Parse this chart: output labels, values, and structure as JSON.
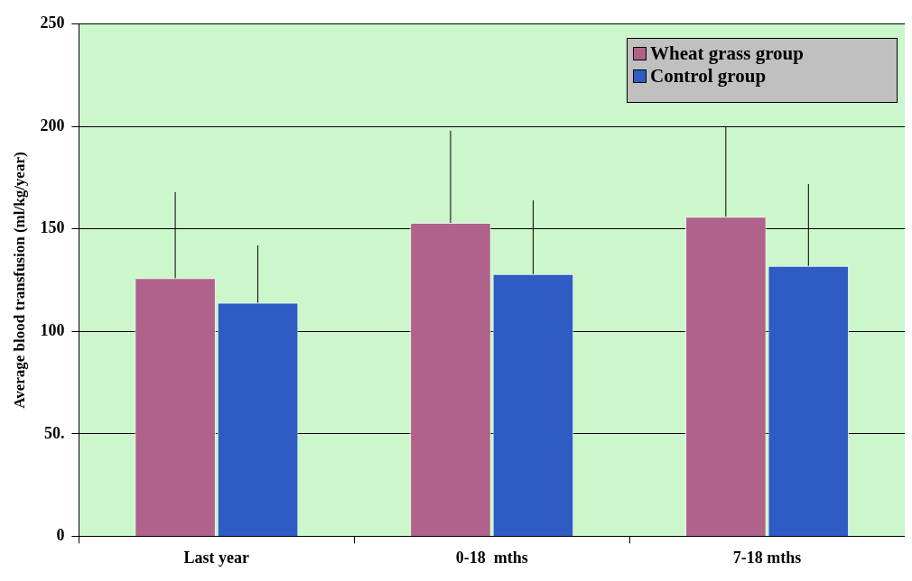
{
  "chart_data": {
    "type": "bar",
    "ylabel": "Average blood transfusion (ml/kg/year)",
    "categories": [
      "Last year",
      "0-18  mths",
      "7-18 mths"
    ],
    "series": [
      {
        "name": "Wheat grass group",
        "color": "#b0628a",
        "values": [
          126,
          153,
          156
        ],
        "errors": [
          [
            126,
            168
          ],
          [
            153,
            198
          ],
          [
            156,
            200
          ]
        ]
      },
      {
        "name": "Control group",
        "color": "#2e5cc4",
        "values": [
          114,
          128,
          132
        ],
        "errors": [
          [
            114,
            142
          ],
          [
            128,
            164
          ],
          [
            132,
            172
          ]
        ]
      }
    ],
    "ylim": [
      0,
      250
    ],
    "yticks": [
      0,
      {
        "value": 50,
        "label": "50."
      },
      100,
      150,
      200,
      250
    ],
    "grid": "y",
    "legend": "top right"
  }
}
